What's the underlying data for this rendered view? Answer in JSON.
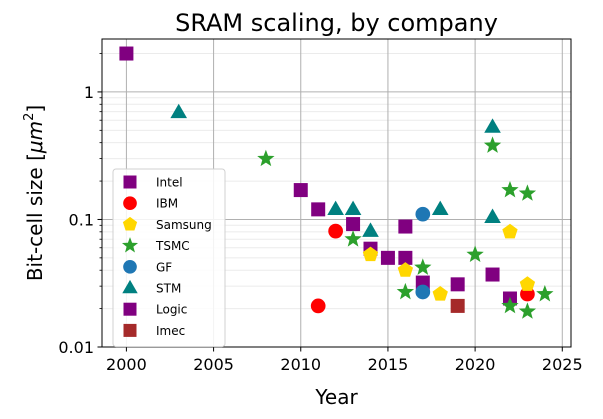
{
  "chart_data": {
    "type": "scatter",
    "title": "SRAM scaling, by company",
    "xlabel": "Year",
    "ylabel_prefix": "Bit-cell size [",
    "ylabel_unit": "μm",
    "ylabel_exp": "2",
    "ylabel_suffix": "]",
    "xlim": [
      1998.6,
      2025.5
    ],
    "ylim": [
      0.01,
      2.6
    ],
    "yscale": "log",
    "grid": true,
    "legend_position": "lower-left",
    "x_ticks": [
      2000,
      2005,
      2010,
      2015,
      2020,
      2025
    ],
    "x_tick_labels": [
      "2000",
      "2005",
      "2010",
      "2015",
      "2020",
      "2025"
    ],
    "y_ticks": [
      0.01,
      0.1,
      1
    ],
    "y_tick_labels": [
      "0.01",
      "0.1",
      "1"
    ],
    "series": [
      {
        "name": "Intel",
        "marker": "square",
        "color": "#800080",
        "points": [
          [
            2000,
            2.0
          ],
          [
            2010,
            0.17
          ],
          [
            2011,
            0.12
          ],
          [
            2013,
            0.092
          ],
          [
            2014,
            0.059
          ],
          [
            2015,
            0.05
          ],
          [
            2016,
            0.05
          ],
          [
            2016,
            0.088
          ],
          [
            2017,
            0.032
          ],
          [
            2019,
            0.031
          ],
          [
            2021,
            0.037
          ],
          [
            2022,
            0.024
          ]
        ]
      },
      {
        "name": "IBM",
        "marker": "circle",
        "color": "#ff0000",
        "points": [
          [
            2011,
            0.021
          ],
          [
            2012,
            0.081
          ],
          [
            2023,
            0.026
          ]
        ]
      },
      {
        "name": "Samsung",
        "marker": "pentagon",
        "color": "#ffd700",
        "points": [
          [
            2014,
            0.053
          ],
          [
            2016,
            0.04
          ],
          [
            2018,
            0.026
          ],
          [
            2022,
            0.08
          ],
          [
            2023,
            0.031
          ]
        ]
      },
      {
        "name": "TSMC",
        "marker": "star",
        "color": "#2ca02c",
        "points": [
          [
            2008,
            0.299
          ],
          [
            2013,
            0.07
          ],
          [
            2016,
            0.027
          ],
          [
            2017,
            0.042
          ],
          [
            2020,
            0.053
          ],
          [
            2021,
            0.38
          ],
          [
            2022,
            0.17
          ],
          [
            2022,
            0.021
          ],
          [
            2023,
            0.16
          ],
          [
            2023,
            0.019
          ],
          [
            2024,
            0.026
          ]
        ]
      },
      {
        "name": "GF",
        "marker": "circle",
        "color": "#1f77b4",
        "points": [
          [
            2017,
            0.11
          ],
          [
            2017,
            0.027
          ]
        ]
      },
      {
        "name": "STM",
        "marker": "triangle",
        "color": "#008080",
        "points": [
          [
            2003,
            0.69
          ],
          [
            2012,
            0.12
          ],
          [
            2013,
            0.12
          ],
          [
            2014,
            0.081
          ],
          [
            2018,
            0.12
          ],
          [
            2021,
            0.53
          ],
          [
            2021,
            0.104
          ]
        ]
      },
      {
        "name": "Logic",
        "marker": "square",
        "color": "#800080",
        "points": []
      },
      {
        "name": "Imec",
        "marker": "square",
        "color": "#a52a2a",
        "points": [
          [
            2019,
            0.021
          ]
        ]
      }
    ]
  }
}
